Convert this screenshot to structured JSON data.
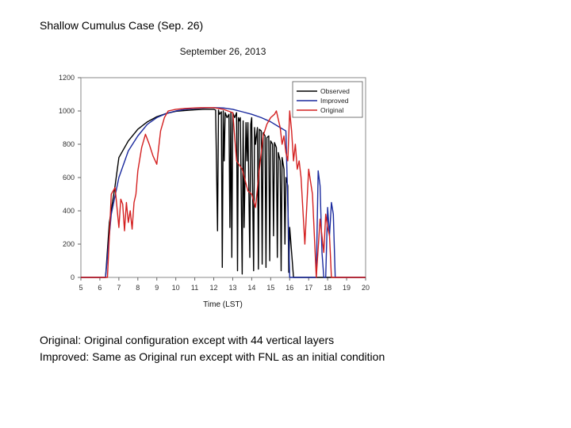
{
  "slide": {
    "title": "Shallow Cumulus Case (Sep. 26)",
    "caption_1": "Original: Original configuration except with 44 vertical layers",
    "caption_2": "Improved: Same as Original run except with FNL as an initial condition"
  },
  "chart_data": {
    "type": "line",
    "title": "September 26, 2013",
    "xlabel": "Time (LST)",
    "ylabel": "",
    "xlim": [
      5,
      20
    ],
    "ylim": [
      0,
      1200
    ],
    "x_ticks": [
      "5",
      "6",
      "7",
      "8",
      "9",
      "10",
      "11",
      "12",
      "13",
      "14",
      "15",
      "16",
      "17",
      "18",
      "19",
      "20"
    ],
    "y_ticks": [
      "0",
      "200",
      "400",
      "600",
      "800",
      "1000",
      "1200"
    ],
    "legend_position": "top-right",
    "series": [
      {
        "name": "Observed",
        "color": "#000000",
        "x": [
          5,
          6.3,
          6.5,
          6.8,
          7.0,
          7.5,
          8.0,
          8.5,
          9.0,
          9.5,
          10.0,
          10.5,
          11.0,
          11.5,
          12.0,
          12.1,
          12.2,
          12.25,
          12.3,
          12.4,
          12.45,
          12.5,
          12.55,
          12.6,
          12.7,
          12.8,
          12.85,
          12.9,
          12.95,
          13.0,
          13.1,
          13.2,
          13.25,
          13.3,
          13.35,
          13.4,
          13.5,
          13.55,
          13.6,
          13.7,
          13.75,
          13.8,
          13.9,
          13.95,
          14.0,
          14.1,
          14.15,
          14.2,
          14.3,
          14.35,
          14.4,
          14.5,
          14.55,
          14.6,
          14.7,
          14.75,
          14.8,
          14.9,
          14.95,
          15.0,
          15.1,
          15.15,
          15.2,
          15.3,
          15.35,
          15.4,
          15.5,
          15.55,
          15.6,
          15.7,
          15.75,
          15.8,
          15.9,
          15.95,
          16.0,
          16.2,
          20
        ],
        "y": [
          0,
          0,
          330,
          550,
          720,
          820,
          890,
          935,
          965,
          985,
          998,
          1003,
          1007,
          1010,
          1010,
          1005,
          280,
          1005,
          980,
          995,
          60,
          1000,
          700,
          990,
          960,
          980,
          300,
          990,
          120,
          990,
          960,
          990,
          40,
          960,
          940,
          960,
          20,
          940,
          300,
          930,
          700,
          930,
          120,
          920,
          960,
          40,
          900,
          800,
          900,
          50,
          890,
          880,
          80,
          870,
          850,
          60,
          840,
          850,
          100,
          820,
          800,
          250,
          810,
          780,
          120,
          750,
          700,
          40,
          720,
          650,
          200,
          600,
          550,
          30,
          300,
          0,
          0
        ]
      },
      {
        "name": "Improved",
        "color": "#1a2a9e",
        "x": [
          5,
          6.3,
          6.6,
          7.0,
          7.5,
          8.0,
          8.5,
          9.0,
          9.5,
          10.0,
          10.5,
          11.0,
          11.5,
          12.0,
          12.5,
          13.0,
          13.5,
          14.0,
          14.5,
          15.0,
          15.5,
          15.8,
          16.0,
          16.1,
          16.2,
          16.4,
          16.6,
          16.8,
          16.9,
          17.0,
          17.1,
          17.2,
          17.3,
          17.4,
          17.5,
          17.6,
          17.7,
          17.8,
          17.9,
          18.0,
          18.1,
          18.2,
          18.3,
          18.4,
          20
        ],
        "y": [
          0,
          0,
          380,
          600,
          760,
          850,
          920,
          960,
          985,
          1000,
          1010,
          1015,
          1018,
          1020,
          1018,
          1010,
          995,
          980,
          960,
          935,
          900,
          880,
          0,
          0,
          0,
          0,
          0,
          0,
          0,
          0,
          0,
          0,
          0,
          0,
          640,
          550,
          150,
          0,
          0,
          420,
          250,
          450,
          380,
          0,
          0
        ]
      },
      {
        "name": "Original",
        "color": "#d42020",
        "x": [
          5,
          6.4,
          6.6,
          6.8,
          7.0,
          7.1,
          7.2,
          7.3,
          7.4,
          7.5,
          7.6,
          7.7,
          7.8,
          7.9,
          8.0,
          8.2,
          8.4,
          8.6,
          8.8,
          9.0,
          9.2,
          9.4,
          9.6,
          10.0,
          10.5,
          11.0,
          11.5,
          12.0,
          12.5,
          13.0,
          13.2,
          13.5,
          13.8,
          14.0,
          14.2,
          14.4,
          14.6,
          14.8,
          15.0,
          15.2,
          15.3,
          15.4,
          15.5,
          15.6,
          15.7,
          15.8,
          15.9,
          16.0,
          16.1,
          16.2,
          16.3,
          16.4,
          16.5,
          16.6,
          16.8,
          17.0,
          17.2,
          17.4,
          17.6,
          17.8,
          17.9,
          18.0,
          18.1,
          18.2,
          18.3,
          18.4,
          20
        ],
        "y": [
          0,
          0,
          500,
          540,
          300,
          470,
          440,
          280,
          450,
          330,
          400,
          290,
          450,
          500,
          640,
          780,
          860,
          800,
          730,
          680,
          880,
          960,
          1000,
          1010,
          1015,
          1018,
          1020,
          1020,
          1010,
          990,
          700,
          650,
          520,
          500,
          420,
          650,
          850,
          920,
          960,
          980,
          1000,
          950,
          900,
          800,
          850,
          750,
          700,
          1000,
          880,
          700,
          800,
          650,
          700,
          600,
          200,
          650,
          500,
          0,
          350,
          150,
          380,
          300,
          250,
          0,
          0,
          0,
          0
        ]
      }
    ]
  }
}
